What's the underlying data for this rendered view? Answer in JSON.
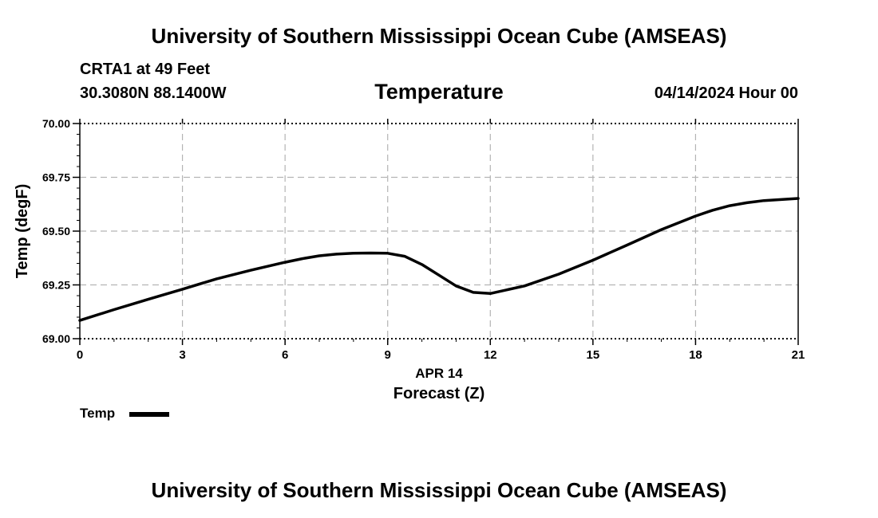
{
  "header": {
    "title": "University of Southern Mississippi Ocean Cube (AMSEAS)",
    "station": "CRTA1 at 49 Feet",
    "coords": "30.3080N  88.1400W",
    "chart_title": "Temperature",
    "datetime": "04/14/2024 Hour 00"
  },
  "footer": {
    "title": "University of Southern Mississippi Ocean Cube (AMSEAS)"
  },
  "chart_data": {
    "type": "line",
    "title": "Temperature",
    "xlabel": "Forecast (Z)",
    "xlabel_date": "APR 14",
    "ylabel": "Temp (degF)",
    "xlim": [
      0,
      21
    ],
    "ylim": [
      69.0,
      70.0
    ],
    "x_ticks": [
      0,
      3,
      6,
      9,
      12,
      15,
      18,
      21
    ],
    "x_tick_labels": [
      "0",
      "3",
      "6",
      "9",
      "12",
      "15",
      "18",
      "21"
    ],
    "y_ticks": [
      69.0,
      69.25,
      69.5,
      69.75,
      70.0
    ],
    "y_tick_labels": [
      "69.00",
      "69.25",
      "69.50",
      "69.75",
      "70.00"
    ],
    "grid": true,
    "legend_position": "bottom-left",
    "series": [
      {
        "name": "Temp",
        "color": "#000000",
        "x": [
          0,
          1,
          2,
          3,
          4,
          5,
          6,
          6.5,
          7,
          7.5,
          8,
          8.5,
          9,
          9.5,
          10,
          10.5,
          11,
          11.5,
          12,
          13,
          14,
          15,
          16,
          17,
          18,
          18.5,
          19,
          19.5,
          20,
          21
        ],
        "y": [
          69.085,
          69.135,
          69.183,
          69.23,
          69.278,
          69.318,
          69.355,
          69.372,
          69.385,
          69.393,
          69.397,
          69.398,
          69.397,
          69.383,
          69.345,
          69.295,
          69.245,
          69.215,
          69.21,
          69.245,
          69.3,
          69.365,
          69.435,
          69.507,
          69.57,
          69.597,
          69.618,
          69.632,
          69.642,
          69.652
        ]
      }
    ]
  }
}
